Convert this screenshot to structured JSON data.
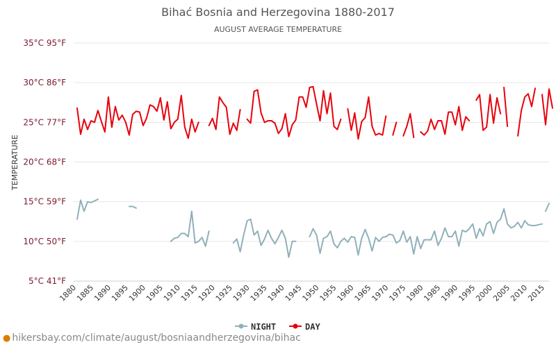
{
  "chart_data": {
    "type": "line",
    "title": "Bihać Bosnia and Herzegovina 1880-2017",
    "subtitle": "AUGUST AVERAGE TEMPERATURE",
    "ylabel": "TEMPERATURE",
    "xlabel": "",
    "y_ticks_c": [
      5,
      10,
      15,
      20,
      25,
      30,
      35
    ],
    "y_tick_labels": [
      "5°C 41°F",
      "10°C 50°F",
      "15°C 59°F",
      "20°C 68°F",
      "25°C 77°F",
      "30°C 86°F",
      "35°C 95°F"
    ],
    "ylim": [
      5,
      35
    ],
    "xlim": [
      1880,
      2017
    ],
    "x_ticks": [
      1880,
      1885,
      1890,
      1895,
      1900,
      1905,
      1910,
      1915,
      1920,
      1925,
      1930,
      1935,
      1940,
      1945,
      1950,
      1955,
      1960,
      1965,
      1970,
      1975,
      1980,
      1985,
      1990,
      1995,
      2000,
      2005,
      2010,
      2015
    ],
    "legend_position": "bottom",
    "series": [
      {
        "name": "NIGHT",
        "color": "#90b0ba",
        "segments": [
          [
            [
              1881,
              12.8
            ],
            [
              1882,
              15.2
            ],
            [
              1883,
              13.8
            ],
            [
              1884,
              15.0
            ],
            [
              1885,
              14.9
            ],
            [
              1886,
              15.1
            ],
            [
              1887,
              15.3
            ]
          ],
          [
            [
              1896,
              14.4
            ],
            [
              1897,
              14.4
            ],
            [
              1898,
              14.2
            ]
          ],
          [
            [
              1908,
              10.0
            ],
            [
              1909,
              10.4
            ],
            [
              1910,
              10.5
            ],
            [
              1911,
              11.0
            ],
            [
              1912,
              11.0
            ],
            [
              1913,
              10.6
            ],
            [
              1914,
              13.8
            ],
            [
              1915,
              9.8
            ],
            [
              1916,
              10.0
            ],
            [
              1917,
              10.5
            ],
            [
              1918,
              9.4
            ],
            [
              1919,
              11.3
            ]
          ],
          [
            [
              1926,
              9.8
            ],
            [
              1927,
              10.3
            ],
            [
              1928,
              8.7
            ],
            [
              1929,
              10.8
            ],
            [
              1930,
              12.6
            ],
            [
              1931,
              12.8
            ],
            [
              1932,
              10.8
            ],
            [
              1933,
              11.3
            ],
            [
              1934,
              9.5
            ],
            [
              1935,
              10.3
            ],
            [
              1936,
              11.4
            ],
            [
              1937,
              10.4
            ],
            [
              1938,
              9.7
            ],
            [
              1939,
              10.5
            ],
            [
              1940,
              11.4
            ],
            [
              1941,
              10.4
            ],
            [
              1942,
              8.0
            ],
            [
              1943,
              10.0
            ],
            [
              1944,
              10.0
            ]
          ],
          [
            [
              1948,
              10.6
            ],
            [
              1949,
              11.6
            ],
            [
              1950,
              10.8
            ],
            [
              1951,
              8.5
            ],
            [
              1952,
              10.4
            ],
            [
              1953,
              10.6
            ],
            [
              1954,
              11.3
            ],
            [
              1955,
              9.7
            ],
            [
              1956,
              9.2
            ],
            [
              1957,
              10.0
            ],
            [
              1958,
              10.4
            ],
            [
              1959,
              9.9
            ],
            [
              1960,
              10.6
            ],
            [
              1961,
              10.5
            ],
            [
              1962,
              8.3
            ],
            [
              1963,
              10.4
            ],
            [
              1964,
              11.5
            ],
            [
              1965,
              10.4
            ],
            [
              1966,
              8.8
            ],
            [
              1967,
              10.5
            ],
            [
              1968,
              10.0
            ],
            [
              1969,
              10.5
            ],
            [
              1970,
              10.6
            ],
            [
              1971,
              10.9
            ],
            [
              1972,
              10.8
            ],
            [
              1973,
              9.8
            ],
            [
              1974,
              10.1
            ],
            [
              1975,
              11.3
            ],
            [
              1976,
              9.9
            ],
            [
              1977,
              10.6
            ],
            [
              1978,
              8.4
            ],
            [
              1979,
              10.6
            ],
            [
              1980,
              9.1
            ],
            [
              1981,
              10.2
            ],
            [
              1982,
              10.2
            ],
            [
              1983,
              10.2
            ],
            [
              1984,
              11.3
            ],
            [
              1985,
              9.5
            ],
            [
              1986,
              10.4
            ],
            [
              1987,
              11.7
            ],
            [
              1988,
              10.6
            ],
            [
              1989,
              10.6
            ],
            [
              1990,
              11.3
            ],
            [
              1991,
              9.4
            ],
            [
              1992,
              11.4
            ],
            [
              1993,
              11.2
            ],
            [
              1994,
              11.6
            ],
            [
              1995,
              12.2
            ],
            [
              1996,
              10.4
            ],
            [
              1997,
              11.6
            ],
            [
              1998,
              10.7
            ],
            [
              1999,
              12.2
            ],
            [
              2000,
              12.5
            ],
            [
              2001,
              11.0
            ],
            [
              2002,
              12.4
            ],
            [
              2003,
              12.8
            ],
            [
              2004,
              14.1
            ],
            [
              2005,
              12.2
            ],
            [
              2006,
              11.7
            ],
            [
              2007,
              11.9
            ],
            [
              2008,
              12.4
            ],
            [
              2009,
              11.7
            ],
            [
              2010,
              12.6
            ],
            [
              2011,
              12.1
            ],
            [
              2012,
              12.0
            ],
            [
              2013,
              12.0
            ],
            [
              2014,
              12.1
            ],
            [
              2015,
              12.2
            ]
          ],
          [
            [
              2016,
              13.8
            ],
            [
              2017,
              14.8
            ]
          ]
        ]
      },
      {
        "name": "DAY",
        "color": "#e8000b",
        "segments": [
          [
            [
              1881,
              26.8
            ],
            [
              1882,
              23.5
            ],
            [
              1883,
              25.4
            ],
            [
              1884,
              24.1
            ],
            [
              1885,
              25.2
            ],
            [
              1886,
              25.0
            ],
            [
              1887,
              26.5
            ],
            [
              1888,
              25.1
            ],
            [
              1889,
              23.8
            ],
            [
              1890,
              28.2
            ],
            [
              1891,
              24.4
            ],
            [
              1892,
              27.0
            ],
            [
              1893,
              25.3
            ],
            [
              1894,
              25.9
            ],
            [
              1895,
              25.0
            ],
            [
              1896,
              23.4
            ],
            [
              1897,
              26.0
            ],
            [
              1898,
              26.4
            ],
            [
              1899,
              26.3
            ],
            [
              1900,
              24.6
            ],
            [
              1901,
              25.5
            ],
            [
              1902,
              27.2
            ],
            [
              1903,
              27.0
            ],
            [
              1904,
              26.4
            ],
            [
              1905,
              28.1
            ],
            [
              1906,
              25.3
            ],
            [
              1907,
              27.6
            ],
            [
              1908,
              24.2
            ],
            [
              1909,
              25.0
            ],
            [
              1910,
              25.4
            ],
            [
              1911,
              28.4
            ],
            [
              1912,
              24.4
            ],
            [
              1913,
              23.0
            ],
            [
              1914,
              25.4
            ],
            [
              1915,
              23.8
            ],
            [
              1916,
              25.0
            ]
          ],
          [
            [
              1919,
              24.6
            ],
            [
              1920,
              25.5
            ],
            [
              1921,
              24.1
            ],
            [
              1922,
              28.2
            ],
            [
              1923,
              27.5
            ],
            [
              1924,
              26.9
            ],
            [
              1925,
              23.5
            ],
            [
              1926,
              24.9
            ],
            [
              1927,
              24.0
            ],
            [
              1928,
              26.6
            ]
          ],
          [
            [
              1930,
              25.4
            ],
            [
              1931,
              24.9
            ],
            [
              1932,
              28.9
            ],
            [
              1933,
              29.1
            ],
            [
              1934,
              26.2
            ],
            [
              1935,
              25.0
            ],
            [
              1936,
              25.2
            ],
            [
              1937,
              25.2
            ],
            [
              1938,
              24.9
            ],
            [
              1939,
              23.6
            ],
            [
              1940,
              24.2
            ],
            [
              1941,
              26.1
            ],
            [
              1942,
              23.2
            ],
            [
              1943,
              24.7
            ],
            [
              1944,
              25.3
            ],
            [
              1945,
              28.2
            ],
            [
              1946,
              28.2
            ],
            [
              1947,
              26.9
            ],
            [
              1948,
              29.4
            ],
            [
              1949,
              29.5
            ],
            [
              1950,
              27.3
            ],
            [
              1951,
              25.2
            ],
            [
              1952,
              29.0
            ],
            [
              1953,
              26.1
            ],
            [
              1954,
              28.7
            ],
            [
              1955,
              24.5
            ],
            [
              1956,
              24.1
            ],
            [
              1957,
              25.4
            ]
          ],
          [
            [
              1959,
              26.7
            ],
            [
              1960,
              24.0
            ],
            [
              1961,
              26.2
            ],
            [
              1962,
              22.9
            ],
            [
              1963,
              25.1
            ],
            [
              1964,
              25.6
            ],
            [
              1965,
              28.2
            ],
            [
              1966,
              24.5
            ],
            [
              1967,
              23.4
            ],
            [
              1968,
              23.6
            ],
            [
              1969,
              23.4
            ],
            [
              1970,
              25.8
            ]
          ],
          [
            [
              1972,
              23.4
            ],
            [
              1973,
              25.0
            ]
          ],
          [
            [
              1975,
              23.3
            ],
            [
              1976,
              24.5
            ],
            [
              1977,
              26.1
            ],
            [
              1978,
              23.1
            ]
          ],
          [
            [
              1980,
              23.8
            ],
            [
              1981,
              23.4
            ],
            [
              1982,
              23.9
            ],
            [
              1983,
              25.4
            ],
            [
              1984,
              24.1
            ],
            [
              1985,
              25.2
            ],
            [
              1986,
              25.2
            ],
            [
              1987,
              23.5
            ],
            [
              1988,
              26.3
            ],
            [
              1989,
              26.3
            ],
            [
              1990,
              24.7
            ],
            [
              1991,
              27.0
            ],
            [
              1992,
              24.0
            ],
            [
              1993,
              25.7
            ],
            [
              1994,
              25.2
            ]
          ],
          [
            [
              1996,
              27.8
            ],
            [
              1997,
              28.5
            ],
            [
              1998,
              24.0
            ],
            [
              1999,
              24.4
            ],
            [
              2000,
              28.5
            ],
            [
              2001,
              24.9
            ],
            [
              2002,
              28.1
            ],
            [
              2003,
              26.1
            ]
          ],
          [
            [
              2004,
              29.4
            ],
            [
              2005,
              24.5
            ]
          ],
          [
            [
              2008,
              23.3
            ],
            [
              2009,
              26.5
            ],
            [
              2010,
              28.2
            ],
            [
              2011,
              28.6
            ],
            [
              2012,
              27.0
            ],
            [
              2013,
              29.3
            ]
          ],
          [
            [
              2015,
              28.5
            ],
            [
              2016,
              24.7
            ],
            [
              2017,
              29.2
            ],
            [
              2018,
              26.8
            ]
          ]
        ]
      }
    ]
  },
  "legend": {
    "night_label": "NIGHT",
    "day_label": "DAY"
  },
  "source": {
    "text": "hikersbay.com/climate/august/bosniaandherzegovina/bihac"
  }
}
